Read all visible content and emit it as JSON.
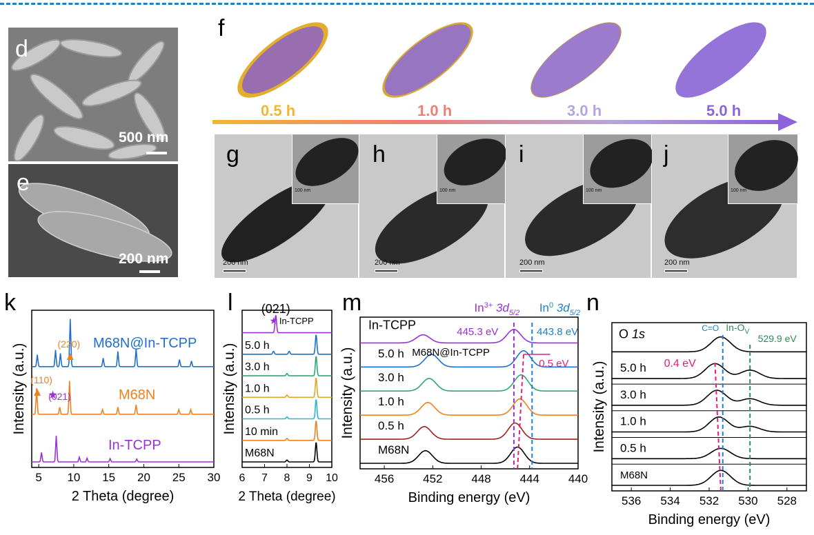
{
  "labels": {
    "d": "d",
    "e": "e",
    "f": "f",
    "g": "g",
    "h": "h",
    "i": "i",
    "j": "j",
    "k": "k",
    "l": "l",
    "m": "m",
    "n": "n"
  },
  "sem": {
    "d_scale": "500 nm",
    "e_scale": "200 nm"
  },
  "timeline": {
    "stages": [
      "0.5 h",
      "1.0 h",
      "3.0 h",
      "5.0 h"
    ],
    "colors": [
      "#f2b632",
      "#ef7f72",
      "#b7a4dd",
      "#8d63dc"
    ]
  },
  "tem": {
    "main_scale": "200 nm",
    "inset_scale": "100 nm"
  },
  "chart_data": [
    {
      "type": "line",
      "panel": "k",
      "xlabel": "2 Theta (degree)",
      "ylabel": "Intensity (a.u.)",
      "xlim": [
        4,
        30
      ],
      "xticks": [
        5,
        10,
        15,
        20,
        25,
        30
      ],
      "series": [
        {
          "name": "M68N@In-TCPP",
          "color": "#1f6fd0",
          "offset": 2,
          "peaks": [
            [
              4.8,
              0.25
            ],
            [
              7.4,
              0.35
            ],
            [
              8.1,
              0.28
            ],
            [
              9.5,
              1.0
            ],
            [
              14.2,
              0.18
            ],
            [
              16.3,
              0.32
            ],
            [
              18.9,
              0.38
            ],
            [
              25.1,
              0.15
            ],
            [
              26.8,
              0.12
            ]
          ]
        },
        {
          "name": "M68N",
          "color": "#f07f1e",
          "offset": 1,
          "peaks": [
            [
              4.7,
              0.55
            ],
            [
              8.0,
              0.15
            ],
            [
              9.4,
              0.7
            ],
            [
              14.1,
              0.1
            ],
            [
              16.3,
              0.15
            ],
            [
              18.9,
              0.2
            ],
            [
              25.0,
              0.1
            ],
            [
              26.7,
              0.1
            ]
          ]
        },
        {
          "name": "In-TCPP",
          "color": "#9b30d9",
          "offset": 0,
          "peaks": [
            [
              5.4,
              0.2
            ],
            [
              7.5,
              0.55
            ],
            [
              10.8,
              0.1
            ],
            [
              11.9,
              0.08
            ],
            [
              15.2,
              0.07
            ],
            [
              19.0,
              0.06
            ]
          ]
        }
      ],
      "annotations": [
        {
          "text": "(220)",
          "x": 9.5,
          "color": "#f07f1e",
          "marker": "triangle"
        },
        {
          "text": "(110)",
          "x": 4.8,
          "color": "#f07f1e",
          "marker": "triangle"
        },
        {
          "text": "(021)",
          "x": 7.4,
          "color": "#9b30d9",
          "marker": "star"
        }
      ]
    },
    {
      "type": "line",
      "panel": "l",
      "xlabel": "2 Theta (degree)",
      "ylabel": "Intensity (a.u.)",
      "xlim": [
        6,
        10
      ],
      "xticks": [
        6,
        7,
        8,
        9,
        10
      ],
      "series": [
        {
          "name": "In-TCPP",
          "color": "#9b30d9",
          "offset": 6,
          "peaks": [
            [
              7.5,
              0.9
            ]
          ]
        },
        {
          "name": "5.0 h",
          "color": "#1f6fd0",
          "offset": 5,
          "peaks": [
            [
              7.4,
              0.15
            ],
            [
              8.1,
              0.15
            ],
            [
              9.3,
              1.0
            ]
          ]
        },
        {
          "name": "3.0 h",
          "color": "#2ca870",
          "offset": 4,
          "peaks": [
            [
              8.0,
              0.12
            ],
            [
              9.3,
              1.0
            ]
          ]
        },
        {
          "name": "1.0 h",
          "color": "#e0a62a",
          "offset": 3,
          "peaks": [
            [
              8.0,
              0.12
            ],
            [
              9.3,
              1.0
            ]
          ]
        },
        {
          "name": "0.5 h",
          "color": "#28b7cf",
          "offset": 2,
          "peaks": [
            [
              8.0,
              0.1
            ],
            [
              9.3,
              1.0
            ]
          ]
        },
        {
          "name": "10 min",
          "color": "#f07f1e",
          "offset": 1,
          "peaks": [
            [
              8.0,
              0.1
            ],
            [
              9.3,
              1.0
            ]
          ]
        },
        {
          "name": "M68N",
          "color": "#000000",
          "offset": 0,
          "peaks": [
            [
              8.0,
              0.1
            ],
            [
              9.3,
              1.0
            ]
          ]
        }
      ],
      "annotations": [
        {
          "text": "(021)",
          "marker": "star",
          "color": "#9b30d9",
          "x": 7.5
        },
        {
          "text": "In-TCPP",
          "x": 7.5
        }
      ]
    },
    {
      "type": "line",
      "panel": "m",
      "xlabel": "Binding energy (eV)",
      "ylabel": "Intensity (a.u.)",
      "xlim": [
        458,
        440
      ],
      "xticks": [
        456,
        452,
        448,
        444,
        440
      ],
      "series": [
        {
          "name": "In-TCPP",
          "color": "#9b30d9",
          "offset": 5,
          "peaks": [
            [
              452.8,
              0.45
            ],
            [
              445.3,
              0.75
            ]
          ]
        },
        {
          "name": "5.0 h",
          "color": "#1f6fd0",
          "offset": 4,
          "peaks": [
            [
              452.1,
              0.7
            ],
            [
              444.5,
              0.9
            ]
          ]
        },
        {
          "name": "3.0 h",
          "color": "#2ca870",
          "offset": 3,
          "peaks": [
            [
              452.3,
              0.7
            ],
            [
              444.7,
              0.9
            ]
          ]
        },
        {
          "name": "1.0 h",
          "color": "#f07f1e",
          "offset": 2,
          "peaks": [
            [
              452.4,
              0.7
            ],
            [
              444.8,
              0.9
            ]
          ]
        },
        {
          "name": "0.5 h",
          "color": "#a0201c",
          "offset": 1,
          "peaks": [
            [
              452.7,
              0.7
            ],
            [
              445.2,
              0.9
            ]
          ]
        },
        {
          "name": "M68N",
          "color": "#000000",
          "offset": 0,
          "peaks": [
            [
              452.6,
              0.7
            ],
            [
              445.0,
              0.9
            ]
          ]
        }
      ],
      "annotations": [
        {
          "text": "In",
          "sup": "3+",
          "tail": "3d",
          "sub": "5/2",
          "color": "#9b30d9"
        },
        {
          "text": "In",
          "sup": "0",
          "tail": "3d",
          "sub": "5/2",
          "color": "#1f7fd0"
        },
        {
          "text": "445.3 eV",
          "x": 445.3,
          "color": "#9b30d9"
        },
        {
          "text": "443.8 eV",
          "x": 443.8,
          "color": "#1f7fd0"
        },
        {
          "text": "M68N@In-TCPP"
        },
        {
          "text": "0.5 eV",
          "color": "#e0207f"
        }
      ]
    },
    {
      "type": "line",
      "panel": "n",
      "xlabel": "Binding energy (eV)",
      "ylabel": "Intensity (a.u.)",
      "xlim": [
        537,
        527
      ],
      "xticks": [
        536,
        534,
        532,
        530,
        528
      ],
      "series": [
        {
          "name": "O 1s",
          "color": "#000000",
          "offset": 5,
          "peaks": [
            [
              531.4,
              0.8
            ]
          ]
        },
        {
          "name": "5.0 h",
          "color": "#000000",
          "offset": 4,
          "peaks": [
            [
              531.7,
              0.8
            ],
            [
              529.9,
              0.45
            ]
          ]
        },
        {
          "name": "3.0 h",
          "color": "#000000",
          "offset": 3,
          "peaks": [
            [
              531.6,
              0.8
            ],
            [
              529.9,
              0.35
            ]
          ]
        },
        {
          "name": "1.0 h",
          "color": "#000000",
          "offset": 2,
          "peaks": [
            [
              531.5,
              0.8
            ],
            [
              529.9,
              0.3
            ]
          ]
        },
        {
          "name": "0.5 h",
          "color": "#000000",
          "offset": 1,
          "peaks": [
            [
              531.4,
              0.55
            ]
          ]
        },
        {
          "name": "M68N",
          "color": "#000000",
          "offset": 0,
          "peaks": [
            [
              531.4,
              0.8
            ]
          ]
        }
      ],
      "annotations": [
        {
          "text": "C=O",
          "x": 531.3,
          "color": "#1f7fd0"
        },
        {
          "text": "In-O",
          "sub": "V",
          "x": 529.9,
          "color": "#2a8c5a"
        },
        {
          "text": "529.9 eV",
          "x": 529.9,
          "color": "#2a8c5a"
        },
        {
          "text": "0.4 eV",
          "color": "#e0207f"
        }
      ]
    }
  ]
}
